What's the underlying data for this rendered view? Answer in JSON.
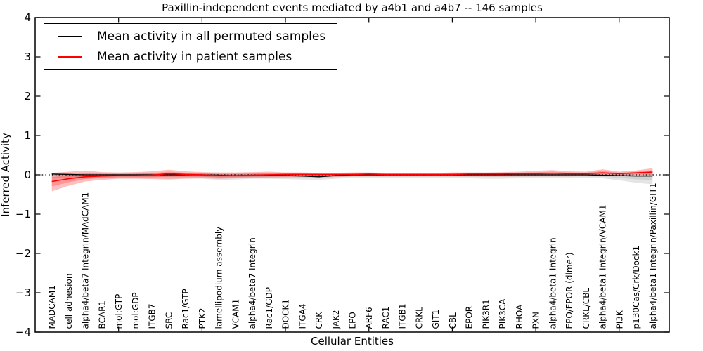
{
  "chart_data": {
    "type": "line",
    "title": "Paxillin-independent events mediated by a4b1 and a4b7 -- 146 samples",
    "xlabel": "Cellular Entities",
    "ylabel": "Inferred Activity",
    "ylim": [
      -4,
      4
    ],
    "xlim": [
      0,
      38
    ],
    "grid": false,
    "legend_position": "upper left",
    "yticks": [
      {
        "v": 4,
        "label": "4"
      },
      {
        "v": 3,
        "label": "3"
      },
      {
        "v": 2,
        "label": "2"
      },
      {
        "v": 1,
        "label": "1"
      },
      {
        "v": 0,
        "label": "0"
      },
      {
        "v": -1,
        "label": "−1"
      },
      {
        "v": -2,
        "label": "−2"
      },
      {
        "v": -3,
        "label": "−3"
      },
      {
        "v": -4,
        "label": "−4"
      }
    ],
    "xticks_major": [
      5,
      10,
      15,
      20,
      25,
      30,
      35
    ],
    "zero_line": {
      "y": 0,
      "style": "dotted",
      "color": "#000000"
    },
    "categories": [
      "MADCAM1",
      "cell adhesion",
      "alpha4/beta7 Integrin/MAdCAM1",
      "BCAR1",
      "mol:GTP",
      "mol:GDP",
      "ITGB7",
      "SRC",
      "Rac1/GTP",
      "PTK2",
      "lamellipodium assembly",
      "VCAM1",
      "alpha4/beta7 Integrin",
      "Rac1/GDP",
      "DOCK1",
      "ITGA4",
      "CRK",
      "JAK2",
      "EPO",
      "ARF6",
      "RAC1",
      "ITGB1",
      "CRKL",
      "GIT1",
      "CBL",
      "EPOR",
      "PIK3R1",
      "PIK3CA",
      "RHOA",
      "PXN",
      "alpha4/beta1 Integrin",
      "EPO/EPOR (dimer)",
      "CRKL/CBL",
      "alpha4/beta1 Integrin/VCAM1",
      "PI3K",
      "p130Cas/Crk/Dock1",
      "alpha4/beta1 Integrin/Paxillin/GIT1"
    ],
    "series": [
      {
        "name": "Mean activity in all permuted samples",
        "color": "#000000",
        "band_color": "#000000",
        "band_opacity": 0.1,
        "values": [
          0.02,
          0.01,
          0.0,
          0.0,
          0.0,
          0.0,
          0.0,
          0.0,
          0.0,
          0.0,
          -0.01,
          -0.02,
          -0.01,
          -0.01,
          -0.02,
          -0.03,
          -0.05,
          -0.02,
          0.0,
          0.0,
          0.0,
          0.0,
          0.0,
          0.0,
          0.0,
          0.0,
          0.0,
          0.0,
          0.0,
          0.0,
          0.0,
          0.0,
          0.0,
          -0.01,
          -0.02,
          -0.03,
          -0.03
        ],
        "band_upper": [
          0.05,
          0.05,
          0.05,
          0.05,
          0.04,
          0.04,
          0.05,
          0.05,
          0.05,
          0.05,
          0.05,
          0.05,
          0.04,
          0.04,
          0.04,
          0.04,
          0.03,
          0.03,
          0.03,
          0.03,
          0.03,
          0.03,
          0.03,
          0.03,
          0.03,
          0.03,
          0.04,
          0.04,
          0.04,
          0.04,
          0.04,
          0.04,
          0.04,
          0.03,
          0.04,
          0.05,
          0.06
        ],
        "band_lower": [
          -0.08,
          -0.09,
          -0.1,
          -0.08,
          -0.08,
          -0.08,
          -0.09,
          -0.1,
          -0.09,
          -0.1,
          -0.13,
          -0.12,
          -0.1,
          -0.1,
          -0.11,
          -0.12,
          -0.13,
          -0.1,
          -0.08,
          -0.08,
          -0.08,
          -0.08,
          -0.08,
          -0.08,
          -0.08,
          -0.09,
          -0.1,
          -0.1,
          -0.09,
          -0.08,
          -0.08,
          -0.08,
          -0.08,
          -0.09,
          -0.14,
          -0.2,
          -0.24
        ]
      },
      {
        "name": "Mean activity in patient samples",
        "color": "#ff0000",
        "band_color": "#ff0000",
        "band_opacity": 0.25,
        "values": [
          -0.17,
          -0.1,
          -0.05,
          -0.03,
          -0.02,
          -0.02,
          -0.01,
          0.03,
          0.01,
          0.0,
          -0.02,
          -0.02,
          -0.01,
          0.0,
          0.01,
          0.01,
          0.01,
          0.01,
          0.01,
          0.02,
          0.01,
          0.01,
          0.01,
          0.01,
          0.01,
          0.02,
          0.02,
          0.02,
          0.03,
          0.03,
          0.04,
          0.03,
          0.03,
          0.05,
          0.03,
          0.05,
          0.07
        ],
        "band_upper": [
          0.05,
          0.08,
          0.11,
          0.07,
          0.06,
          0.07,
          0.09,
          0.13,
          0.09,
          0.07,
          0.06,
          0.06,
          0.07,
          0.08,
          0.06,
          0.06,
          0.05,
          0.05,
          0.06,
          0.06,
          0.05,
          0.05,
          0.05,
          0.05,
          0.06,
          0.06,
          0.06,
          0.07,
          0.08,
          0.1,
          0.12,
          0.09,
          0.08,
          0.14,
          0.08,
          0.11,
          0.17
        ],
        "band_lower": [
          -0.42,
          -0.28,
          -0.17,
          -0.13,
          -0.1,
          -0.1,
          -0.11,
          -0.12,
          -0.1,
          -0.09,
          -0.1,
          -0.09,
          -0.08,
          -0.07,
          -0.06,
          -0.05,
          -0.05,
          -0.05,
          -0.04,
          -0.04,
          -0.04,
          -0.04,
          -0.04,
          -0.04,
          -0.04,
          -0.04,
          -0.04,
          -0.04,
          -0.04,
          -0.04,
          -0.04,
          -0.04,
          -0.03,
          -0.02,
          -0.02,
          -0.01,
          -0.04
        ]
      }
    ]
  }
}
